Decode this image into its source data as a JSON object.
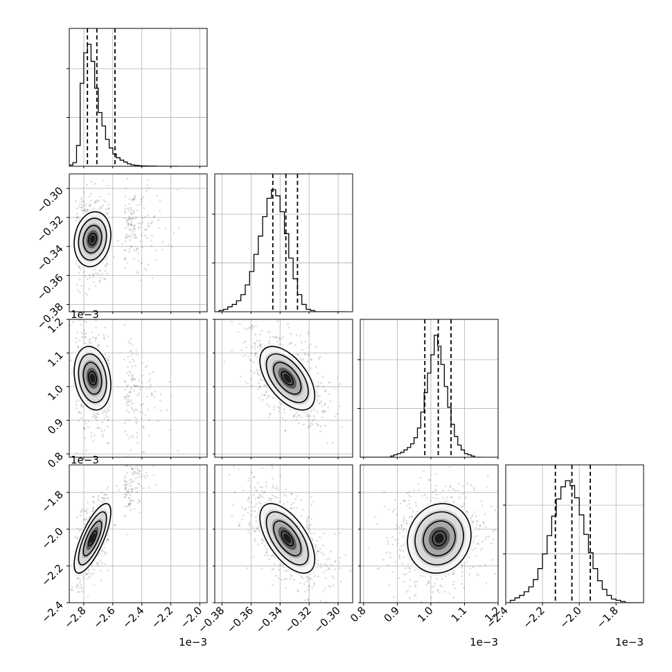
{
  "chart_data": {
    "type": "corner",
    "n_params": 4,
    "params": [
      {
        "range": [
          -2.9,
          -1.95
        ],
        "ticks": [
          -2.8,
          -2.6,
          -2.4,
          -2.2,
          -2.0
        ],
        "tick_labels": [
          "−2.8",
          "−2.6",
          "−2.4",
          "−2.2",
          "−2.0"
        ],
        "multiplier": "1e−3",
        "quantiles": [
          -2.775,
          -2.71,
          -2.585
        ],
        "hist_bins": [
          -2.9,
          -2.875,
          -2.85,
          -2.825,
          -2.8,
          -2.775,
          -2.75,
          -2.725,
          -2.7,
          -2.675,
          -2.65,
          -2.625,
          -2.6,
          -2.575,
          -2.55,
          -2.525,
          -2.5,
          -2.475,
          -2.45,
          -2.425,
          -2.4,
          -2.375,
          -2.35,
          -2.325,
          -2.3,
          -2.275,
          -2.25,
          -2.225,
          -2.2,
          -2.175,
          -2.15
        ],
        "hist_counts": [
          0.01,
          0.03,
          0.17,
          0.68,
          0.93,
          1.0,
          0.86,
          0.64,
          0.44,
          0.33,
          0.22,
          0.15,
          0.1,
          0.07,
          0.05,
          0.035,
          0.02,
          0.012,
          0.008,
          0.005,
          0.003,
          0.002,
          0.001,
          0.001,
          0.0,
          0.0,
          0.0,
          0.0,
          0.0,
          0.0
        ]
      },
      {
        "range": [
          -0.385,
          -0.29
        ],
        "ticks": [
          -0.38,
          -0.36,
          -0.34,
          -0.32,
          -0.3
        ],
        "tick_labels": [
          "−0.38",
          "−0.36",
          "−0.34",
          "−0.32",
          "−0.30"
        ],
        "multiplier": "",
        "quantiles": [
          -0.345,
          -0.336,
          -0.328
        ],
        "hist_bins": [
          -0.385,
          -0.382,
          -0.379,
          -0.376,
          -0.373,
          -0.37,
          -0.367,
          -0.364,
          -0.361,
          -0.358,
          -0.355,
          -0.352,
          -0.349,
          -0.346,
          -0.343,
          -0.34,
          -0.337,
          -0.334,
          -0.331,
          -0.328,
          -0.325,
          -0.322,
          -0.319,
          -0.316,
          -0.313,
          -0.31,
          -0.307,
          -0.304,
          -0.301,
          -0.298,
          -0.295
        ],
        "hist_counts": [
          0.0,
          0.01,
          0.02,
          0.04,
          0.06,
          0.09,
          0.14,
          0.22,
          0.33,
          0.47,
          0.62,
          0.78,
          0.93,
          1.0,
          0.95,
          0.82,
          0.64,
          0.44,
          0.27,
          0.14,
          0.06,
          0.02,
          0.01,
          0.0,
          0.0,
          0.0,
          0.0,
          0.0,
          0.0,
          0.0
        ]
      },
      {
        "range": [
          0.79,
          1.2
        ],
        "ticks": [
          0.8,
          0.9,
          1.0,
          1.1,
          1.2
        ],
        "tick_labels": [
          "0.8",
          "0.9",
          "1.0",
          "1.1",
          "1.2"
        ],
        "multiplier": "1e−3",
        "quantiles": [
          0.982,
          1.022,
          1.06
        ],
        "hist_bins": [
          0.79,
          0.8,
          0.81,
          0.82,
          0.83,
          0.84,
          0.85,
          0.86,
          0.87,
          0.88,
          0.89,
          0.9,
          0.91,
          0.92,
          0.93,
          0.94,
          0.95,
          0.96,
          0.97,
          0.98,
          0.99,
          1.0,
          1.01,
          1.02,
          1.03,
          1.04,
          1.05,
          1.06,
          1.07,
          1.08,
          1.09,
          1.1,
          1.11,
          1.12,
          1.13,
          1.14,
          1.15
        ],
        "hist_counts": [
          0.0,
          0.0,
          0.0,
          0.0,
          0.0,
          0.0,
          0.0,
          0.0,
          0.0,
          0.01,
          0.02,
          0.03,
          0.04,
          0.06,
          0.08,
          0.11,
          0.16,
          0.24,
          0.37,
          0.53,
          0.69,
          0.84,
          1.0,
          0.91,
          0.76,
          0.58,
          0.41,
          0.27,
          0.17,
          0.1,
          0.06,
          0.03,
          0.02,
          0.01,
          0.0,
          0.0
        ]
      },
      {
        "range": [
          -2.4,
          -1.65
        ],
        "ticks": [
          -2.4,
          -2.2,
          -2.0,
          -1.8
        ],
        "tick_labels": [
          "−2.4",
          "−2.2",
          "−2.0",
          "−1.8"
        ],
        "multiplier": "1e−3",
        "quantiles": [
          -2.13,
          -2.04,
          -1.94
        ],
        "hist_bins": [
          -2.4,
          -2.375,
          -2.35,
          -2.325,
          -2.3,
          -2.275,
          -2.25,
          -2.225,
          -2.2,
          -2.175,
          -2.15,
          -2.125,
          -2.1,
          -2.075,
          -2.05,
          -2.025,
          -2.0,
          -1.975,
          -1.95,
          -1.925,
          -1.9,
          -1.875,
          -1.85,
          -1.825,
          -1.8,
          -1.775,
          -1.75,
          -1.725,
          -1.7,
          -1.675,
          -1.65
        ],
        "hist_counts": [
          0.0,
          0.02,
          0.04,
          0.06,
          0.09,
          0.13,
          0.19,
          0.28,
          0.4,
          0.55,
          0.71,
          0.85,
          0.95,
          1.0,
          0.96,
          0.86,
          0.72,
          0.56,
          0.41,
          0.28,
          0.18,
          0.11,
          0.06,
          0.03,
          0.02,
          0.01,
          0.0,
          0.0,
          0.0,
          0.0
        ]
      }
    ],
    "contour_levels": [
      0.118,
      0.393,
      0.675,
      0.865
    ],
    "pairs": [
      {
        "row": 1,
        "col": 0,
        "mean": [
          -2.74,
          -0.335
        ],
        "sd": [
          0.06,
          0.009
        ],
        "corr": 0.15,
        "tail": 0.9
      },
      {
        "row": 2,
        "col": 0,
        "mean": [
          -2.74,
          1.025
        ],
        "sd": [
          0.06,
          0.045
        ],
        "corr": -0.2,
        "tail": 0.9
      },
      {
        "row": 2,
        "col": 1,
        "mean": [
          -0.335,
          1.025
        ],
        "sd": [
          0.009,
          0.045
        ],
        "corr": -0.55,
        "tail": 0.0
      },
      {
        "row": 3,
        "col": 0,
        "mean": [
          -2.74,
          -2.05
        ],
        "sd": [
          0.06,
          0.09
        ],
        "corr": 0.75,
        "tail": 0.9
      },
      {
        "row": 3,
        "col": 1,
        "mean": [
          -0.335,
          -2.05
        ],
        "sd": [
          0.009,
          0.09
        ],
        "corr": -0.6,
        "tail": 0.0
      },
      {
        "row": 3,
        "col": 2,
        "mean": [
          1.025,
          -2.05
        ],
        "sd": [
          0.045,
          0.09
        ],
        "corr": 0.1,
        "tail": 0.0
      }
    ],
    "grid": true
  }
}
